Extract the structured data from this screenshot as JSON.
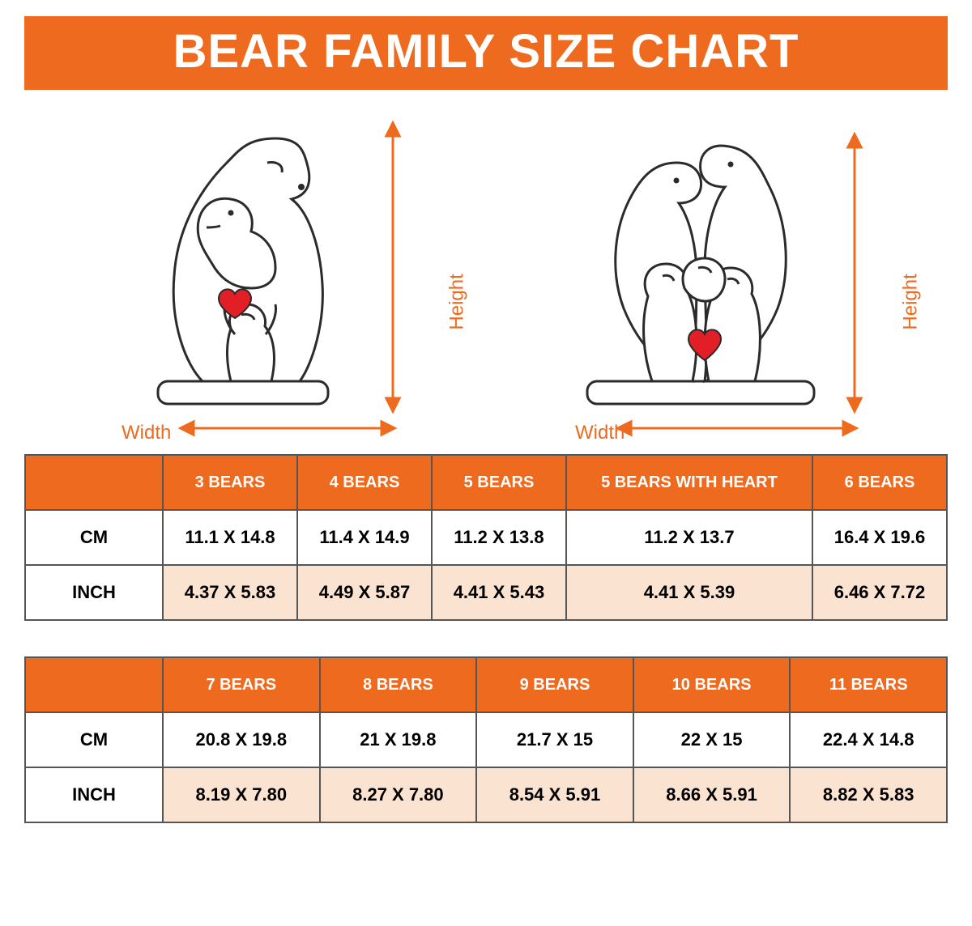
{
  "colors": {
    "accent": "#ed6a1f",
    "tint": "#fbe3d1",
    "heart": "#e21f26",
    "outline": "#2b2b2b"
  },
  "title": "BEAR FAMILY SIZE CHART",
  "labels": {
    "height": "Height",
    "width": "Width"
  },
  "tables": [
    {
      "corner": "",
      "headers": [
        "3 BEARS",
        "4 BEARS",
        "5 BEARS",
        "5 BEARS WITH HEART",
        "6 BEARS"
      ],
      "rows": [
        {
          "label": "CM",
          "cells": [
            "11.1 X 14.8",
            "11.4 X 14.9",
            "11.2 X 13.8",
            "11.2 X 13.7",
            "16.4 X 19.6"
          ],
          "tint": false
        },
        {
          "label": "INCH",
          "cells": [
            "4.37 X 5.83",
            "4.49 X 5.87",
            "4.41 X 5.43",
            "4.41 X 5.39",
            "6.46 X 7.72"
          ],
          "tint": true
        }
      ]
    },
    {
      "corner": "",
      "headers": [
        "7 BEARS",
        "8 BEARS",
        "9 BEARS",
        "10 BEARS",
        "11 BEARS"
      ],
      "rows": [
        {
          "label": "CM",
          "cells": [
            "20.8 X 19.8",
            "21 X 19.8",
            "21.7 X 15",
            "22 X 15",
            "22.4 X 14.8"
          ],
          "tint": false
        },
        {
          "label": "INCH",
          "cells": [
            "8.19 X 7.80",
            "8.27 X 7.80",
            "8.54 X 5.91",
            "8.66 X 5.91",
            "8.82 X 5.83"
          ],
          "tint": true
        }
      ]
    }
  ]
}
